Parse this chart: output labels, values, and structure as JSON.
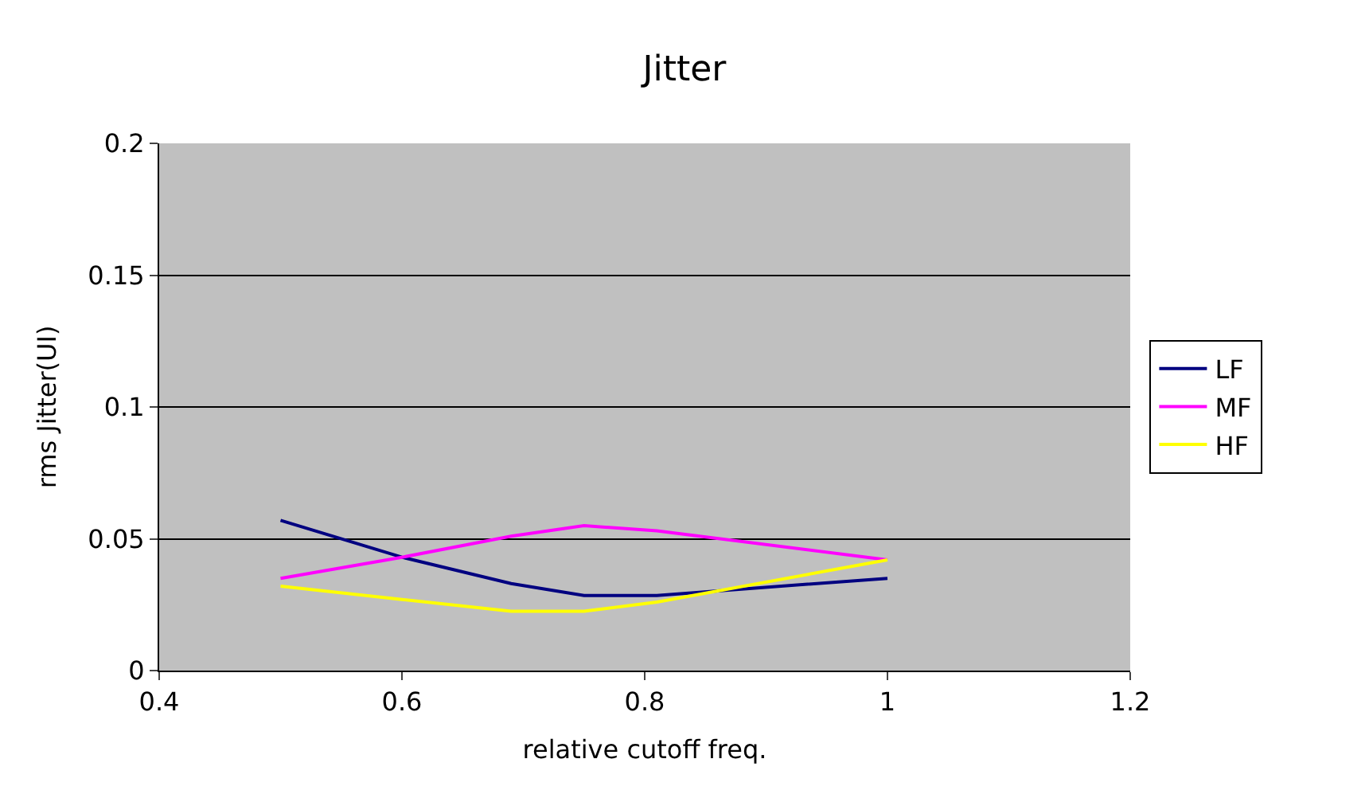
{
  "chart_data": {
    "type": "line",
    "title": "Jitter",
    "xlabel": "relative cutoff freq.",
    "ylabel": "rms Jitter(UI)",
    "x": [
      0.5,
      0.6,
      0.69,
      0.75,
      0.81,
      1.0
    ],
    "series": [
      {
        "name": "LF",
        "color": "#000080",
        "values": [
          0.057,
          0.043,
          0.033,
          0.0285,
          0.0285,
          0.035
        ]
      },
      {
        "name": "MF",
        "color": "#ff00ff",
        "values": [
          0.035,
          0.043,
          0.051,
          0.055,
          0.053,
          0.042
        ]
      },
      {
        "name": "HF",
        "color": "#ffff00",
        "values": [
          0.032,
          0.027,
          0.0225,
          0.0225,
          0.026,
          0.042
        ]
      }
    ],
    "xlim": [
      0.4,
      1.2
    ],
    "xticks": [
      0.4,
      0.6,
      0.8,
      1,
      1.2
    ],
    "ylim": [
      0,
      0.2
    ],
    "yticks": [
      0,
      0.05,
      0.1,
      0.15,
      0.2
    ],
    "grid": "y",
    "legend": "right",
    "marker": "none",
    "line_style": "solid"
  }
}
